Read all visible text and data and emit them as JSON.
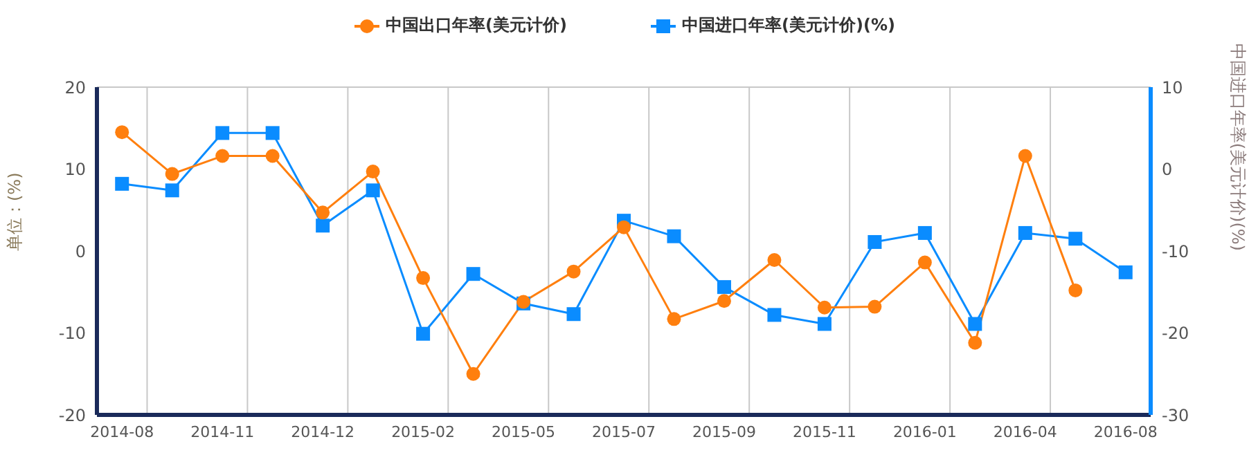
{
  "chart_data": {
    "type": "line",
    "categories": [
      "2014-08",
      null,
      "2014-11",
      null,
      "2014-12",
      null,
      "2015-02",
      null,
      "2015-05",
      null,
      "2015-07",
      null,
      "2015-09",
      null,
      "2015-11",
      null,
      "2016-01",
      null,
      "2016-04",
      null,
      "2016-08"
    ],
    "series": [
      {
        "name": "中国出口年率(美元计价)",
        "color": "#ff7f0e",
        "marker": "circle",
        "values": [
          14.5,
          9.4,
          11.6,
          11.6,
          4.7,
          9.7,
          -3.3,
          -15.0,
          -6.2,
          -2.5,
          2.9,
          -8.3,
          -6.1,
          -1.1,
          -6.9,
          -6.8,
          -1.4,
          -11.2,
          11.6,
          -4.8,
          null
        ]
      },
      {
        "name": "中国进口年率(美元计价)(%)",
        "color": "#0a8cff",
        "marker": "square",
        "axis": "y2",
        "values": [
          -1.8,
          -2.6,
          4.4,
          4.4,
          -6.9,
          -2.6,
          -20.1,
          -12.8,
          -16.4,
          -17.7,
          -6.3,
          -8.2,
          -14.4,
          -17.8,
          -18.9,
          -8.9,
          -7.8,
          -18.9,
          -7.8,
          -8.5,
          -12.6
        ]
      }
    ],
    "ylabel": "单位：(%)",
    "y2label": "中国进口年率(美元计价)(%)",
    "ylim": [
      -20,
      20
    ],
    "yticks": [
      -20,
      -10,
      0,
      10,
      20
    ],
    "y2lim": [
      -30,
      10
    ],
    "y2ticks": [
      -30,
      -20,
      -10,
      0,
      10
    ],
    "grid": true,
    "legend": "top",
    "line_style": "solid"
  }
}
